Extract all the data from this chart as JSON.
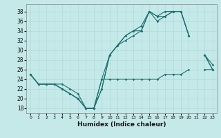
{
  "xlabel": "Humidex (Indice chaleur)",
  "background_color": "#c5e9e9",
  "grid_color": "#afd8d8",
  "line_color": "#1d6e6e",
  "xlim": [
    -0.5,
    23.5
  ],
  "ylim": [
    17,
    39.5
  ],
  "xticks": [
    0,
    1,
    2,
    3,
    4,
    5,
    6,
    7,
    8,
    9,
    10,
    11,
    12,
    13,
    14,
    15,
    16,
    17,
    18,
    19,
    20,
    21,
    22,
    23
  ],
  "yticks": [
    18,
    20,
    22,
    24,
    26,
    28,
    30,
    32,
    34,
    36,
    38
  ],
  "hours": [
    0,
    1,
    2,
    3,
    4,
    5,
    6,
    7,
    8,
    9,
    10,
    11,
    12,
    13,
    14,
    15,
    16,
    17,
    18,
    19,
    20,
    21,
    22,
    23
  ],
  "line1": [
    25,
    23,
    23,
    23,
    22,
    21,
    20,
    18,
    18,
    22,
    29,
    31,
    32,
    33,
    34,
    38,
    36,
    37,
    38,
    38,
    33,
    null,
    29,
    26
  ],
  "line2": [
    25,
    23,
    23,
    23,
    22,
    21,
    20,
    18,
    18,
    22,
    29,
    31,
    33,
    34,
    34,
    38,
    37,
    37,
    38,
    38,
    33,
    null,
    29,
    26
  ],
  "line3": [
    25,
    23,
    23,
    23,
    22,
    21,
    20,
    18,
    18,
    24,
    29,
    31,
    33,
    34,
    35,
    38,
    37,
    38,
    38,
    38,
    33,
    null,
    29,
    27
  ],
  "line_min": [
    25,
    23,
    23,
    23,
    23,
    22,
    21,
    18,
    18,
    24,
    24,
    24,
    24,
    24,
    24,
    24,
    24,
    25,
    25,
    25,
    26,
    null,
    26,
    26
  ]
}
